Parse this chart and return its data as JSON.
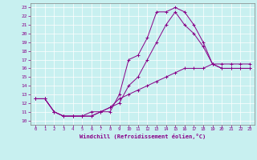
{
  "xlabel": "Windchill (Refroidissement éolien,°C)",
  "bg_color": "#c8f0f0",
  "grid_color": "#b0d8d8",
  "line_color": "#880088",
  "xlim": [
    -0.5,
    23.5
  ],
  "ylim": [
    9.5,
    23.5
  ],
  "xticks": [
    0,
    1,
    2,
    3,
    4,
    5,
    6,
    7,
    8,
    9,
    10,
    11,
    12,
    13,
    14,
    15,
    16,
    17,
    18,
    19,
    20,
    21,
    22,
    23
  ],
  "yticks": [
    10,
    11,
    12,
    13,
    14,
    15,
    16,
    17,
    18,
    19,
    20,
    21,
    22,
    23
  ],
  "curve1_x": [
    0,
    1,
    2,
    3,
    4,
    5,
    6,
    7,
    8,
    9,
    10,
    11,
    12,
    13,
    14,
    15,
    16,
    17,
    18,
    19,
    20,
    21,
    22,
    23
  ],
  "curve1_y": [
    12.5,
    12.5,
    11.0,
    10.5,
    10.5,
    10.5,
    10.5,
    11.0,
    11.0,
    13.0,
    17.0,
    17.5,
    19.5,
    22.5,
    22.5,
    23.0,
    22.5,
    21.0,
    19.0,
    16.5,
    16.0,
    16.0,
    16.0,
    16.0
  ],
  "curve2_x": [
    0,
    1,
    2,
    3,
    4,
    5,
    6,
    7,
    8,
    9,
    10,
    11,
    12,
    13,
    14,
    15,
    16,
    17,
    18,
    19,
    20,
    21,
    22,
    23
  ],
  "curve2_y": [
    12.5,
    12.5,
    11.0,
    10.5,
    10.5,
    10.5,
    10.5,
    11.0,
    11.5,
    12.0,
    14.0,
    15.0,
    17.0,
    19.0,
    21.0,
    22.5,
    21.0,
    20.0,
    18.5,
    16.5,
    16.0,
    16.0,
    16.0,
    16.0
  ],
  "curve3_x": [
    0,
    1,
    2,
    3,
    4,
    5,
    6,
    7,
    8,
    9,
    10,
    11,
    12,
    13,
    14,
    15,
    16,
    17,
    18,
    19,
    20,
    21,
    22,
    23
  ],
  "curve3_y": [
    12.5,
    12.5,
    11.0,
    10.5,
    10.5,
    10.5,
    11.0,
    11.0,
    11.5,
    12.5,
    13.0,
    13.5,
    14.0,
    14.5,
    15.0,
    15.5,
    16.0,
    16.0,
    16.0,
    16.5,
    16.5,
    16.5,
    16.5,
    16.5
  ]
}
